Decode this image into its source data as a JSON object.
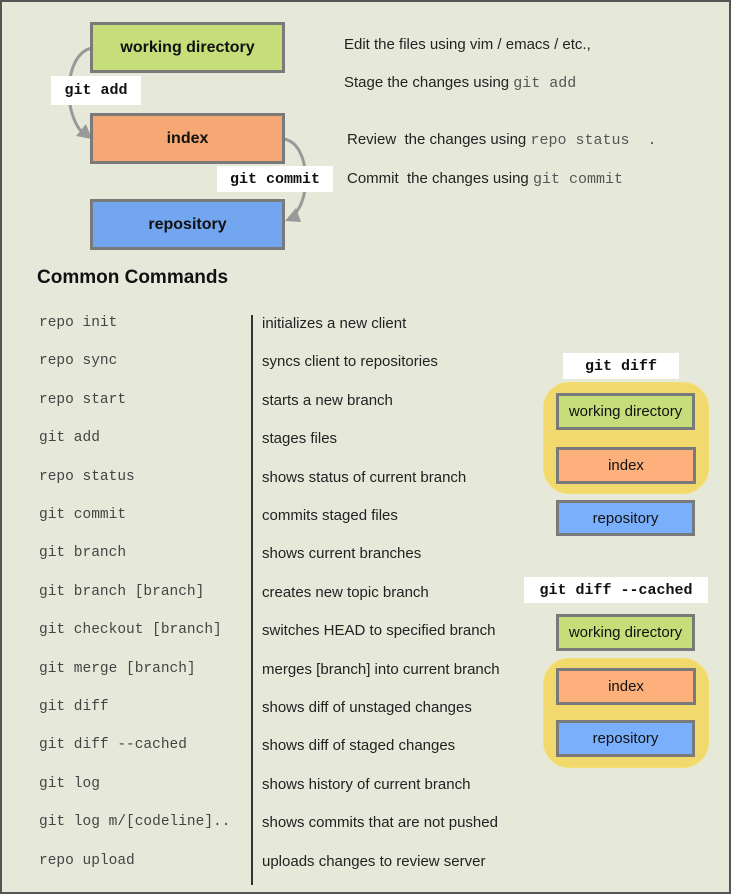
{
  "workflow": {
    "working_directory": "working directory",
    "index": "index",
    "repository": "repository",
    "git_add": "git add",
    "git_commit": "git commit",
    "notes": [
      {
        "text": "Edit the files using vim / emacs / etc.,",
        "code": ""
      },
      {
        "text": "Stage the changes using ",
        "code": "git add"
      },
      {
        "text": "Review  the changes using ",
        "code": "repo status  ."
      },
      {
        "text": "Commit  the changes using ",
        "code": "git commit"
      }
    ]
  },
  "common": {
    "heading": "Common Commands",
    "rows": [
      {
        "cmd": "repo init",
        "desc": "initializes a new client"
      },
      {
        "cmd": "repo sync",
        "desc": "syncs client to repositories"
      },
      {
        "cmd": "repo start",
        "desc": "starts a new branch"
      },
      {
        "cmd": "git add",
        "desc": "stages files"
      },
      {
        "cmd": "repo status",
        "desc": "shows status of current branch"
      },
      {
        "cmd": "git commit",
        "desc": "commits staged files"
      },
      {
        "cmd": "git branch",
        "desc": "shows current branches"
      },
      {
        "cmd": "git branch [branch]",
        "desc": "creates new topic branch"
      },
      {
        "cmd": "git checkout [branch]",
        "desc": "switches HEAD to specified branch"
      },
      {
        "cmd": "git merge [branch]",
        "desc": "merges [branch] into current branch"
      },
      {
        "cmd": "git diff",
        "desc": "shows diff of unstaged changes"
      },
      {
        "cmd": "git diff --cached",
        "desc": "shows diff of staged changes"
      },
      {
        "cmd": "git log",
        "desc": "shows history of current branch"
      },
      {
        "cmd": "git log m/[codeline]..",
        "desc": "shows commits that are not pushed"
      },
      {
        "cmd": "repo upload",
        "desc": "uploads changes to review server"
      }
    ]
  },
  "diff": {
    "label": "git diff",
    "working_directory": "working directory",
    "index": "index",
    "repository": "repository"
  },
  "diff_cached": {
    "label": "git diff --cached",
    "working_directory": "working directory",
    "index": "index",
    "repository": "repository"
  }
}
